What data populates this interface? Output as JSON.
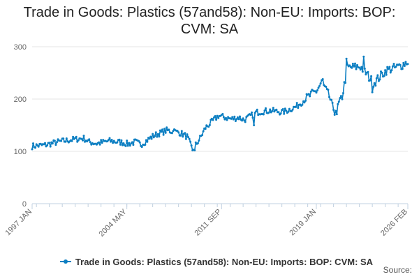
{
  "colors": {
    "series": "#0d7fc2",
    "grid": "#e6e6e6",
    "axis": "#c0d0e0",
    "text": "#666666"
  },
  "source_label": "Source:",
  "chart_data": {
    "type": "line",
    "title_lines": [
      "Trade in Goods: Plastics (57and58): Non-EU: Imports: BOP:",
      "CVM: SA"
    ],
    "xlabel": "",
    "ylabel": "",
    "x_start": "1997-01",
    "x_end": "2026-02",
    "ylim": [
      0,
      300
    ],
    "y_ticks": [
      0,
      100,
      200,
      300
    ],
    "x_ticks": [
      {
        "label": "1997 JAN",
        "date": "1997-01"
      },
      {
        "label": "2004 MAY",
        "date": "2004-05"
      },
      {
        "label": "2011 SEP",
        "date": "2011-09"
      },
      {
        "label": "2019 JAN",
        "date": "2019-01"
      },
      {
        "label": "2026 FEB",
        "date": "2026-02"
      }
    ],
    "grid": true,
    "legend_position": "bottom",
    "series": [
      {
        "name": "Trade in Goods: Plastics (57and58): Non-EU: Imports: BOP: CVM: SA",
        "frequency": "monthly",
        "anchors": [
          {
            "date": "1997-01",
            "value": 110
          },
          {
            "date": "1998-01",
            "value": 112
          },
          {
            "date": "1999-01",
            "value": 118
          },
          {
            "date": "2000-01",
            "value": 122
          },
          {
            "date": "2001-01",
            "value": 125
          },
          {
            "date": "2001-06",
            "value": 118
          },
          {
            "date": "2002-01",
            "value": 115
          },
          {
            "date": "2003-01",
            "value": 120
          },
          {
            "date": "2004-01",
            "value": 117
          },
          {
            "date": "2004-06",
            "value": 114
          },
          {
            "date": "2005-01",
            "value": 118
          },
          {
            "date": "2005-06",
            "value": 113
          },
          {
            "date": "2006-06",
            "value": 130
          },
          {
            "date": "2007-06",
            "value": 140
          },
          {
            "date": "2008-06",
            "value": 136
          },
          {
            "date": "2009-01",
            "value": 128
          },
          {
            "date": "2009-06",
            "value": 103
          },
          {
            "date": "2010-01",
            "value": 125
          },
          {
            "date": "2010-06",
            "value": 145
          },
          {
            "date": "2011-06",
            "value": 168
          },
          {
            "date": "2012-06",
            "value": 162
          },
          {
            "date": "2013-01",
            "value": 165
          },
          {
            "date": "2013-06",
            "value": 160
          },
          {
            "date": "2014-06",
            "value": 175
          },
          {
            "date": "2015-06",
            "value": 178
          },
          {
            "date": "2016-06",
            "value": 175
          },
          {
            "date": "2017-06",
            "value": 185
          },
          {
            "date": "2018-06",
            "value": 205
          },
          {
            "date": "2019-01",
            "value": 215
          },
          {
            "date": "2019-06",
            "value": 232
          },
          {
            "date": "2020-01",
            "value": 205
          },
          {
            "date": "2020-06",
            "value": 175
          },
          {
            "date": "2021-01",
            "value": 205
          },
          {
            "date": "2021-06",
            "value": 260
          },
          {
            "date": "2022-06",
            "value": 262
          },
          {
            "date": "2023-01",
            "value": 245
          },
          {
            "date": "2023-06",
            "value": 230
          },
          {
            "date": "2024-06",
            "value": 255
          },
          {
            "date": "2025-06",
            "value": 262
          },
          {
            "date": "2026-02",
            "value": 272
          }
        ],
        "spikes": [
          {
            "date": "2008-01",
            "value": 142
          },
          {
            "date": "2009-08",
            "value": 102
          },
          {
            "date": "2014-03",
            "value": 150
          },
          {
            "date": "2019-07",
            "value": 238
          },
          {
            "date": "2020-08",
            "value": 171
          },
          {
            "date": "2022-09",
            "value": 281
          },
          {
            "date": "2023-05",
            "value": 213
          },
          {
            "date": "2021-05",
            "value": 277
          }
        ]
      }
    ]
  }
}
